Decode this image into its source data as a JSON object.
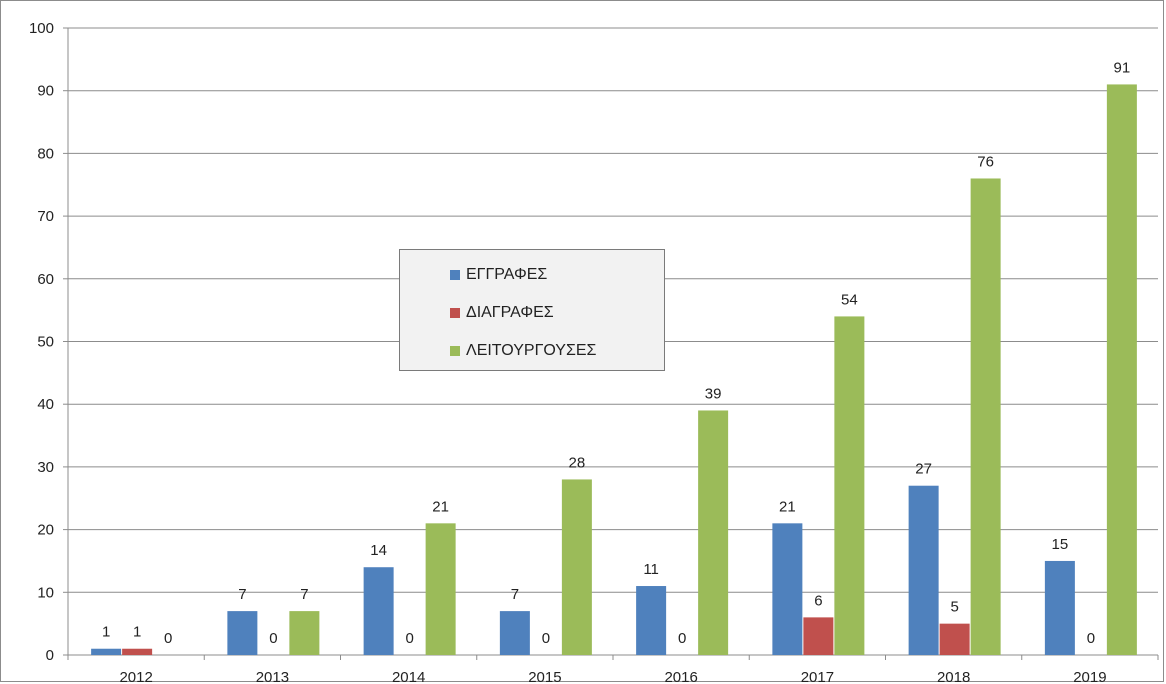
{
  "chart_data": {
    "type": "bar",
    "title": "",
    "xlabel": "",
    "ylabel": "",
    "categories": [
      "2012",
      "2013",
      "2014",
      "2015",
      "2016",
      "2017",
      "2018",
      "2019"
    ],
    "ylim": [
      0,
      100
    ],
    "yticks": [
      0,
      10,
      20,
      30,
      40,
      50,
      60,
      70,
      80,
      90,
      100
    ],
    "grid": true,
    "legend_position": "center",
    "series": [
      {
        "name": "ΕΓΓΡΑΦΕΣ",
        "color": "#4f81bd",
        "values": [
          1,
          7,
          14,
          7,
          11,
          21,
          27,
          15
        ]
      },
      {
        "name": "ΔΙΑΓΡΑΦΕΣ",
        "color": "#c0504d",
        "values": [
          1,
          0,
          0,
          0,
          0,
          6,
          5,
          0
        ]
      },
      {
        "name": "ΛΕΙΤΟΥΡΓΟΥΣΕΣ",
        "color": "#9bbb59",
        "values": [
          0,
          7,
          21,
          28,
          39,
          54,
          76,
          91
        ]
      }
    ]
  }
}
